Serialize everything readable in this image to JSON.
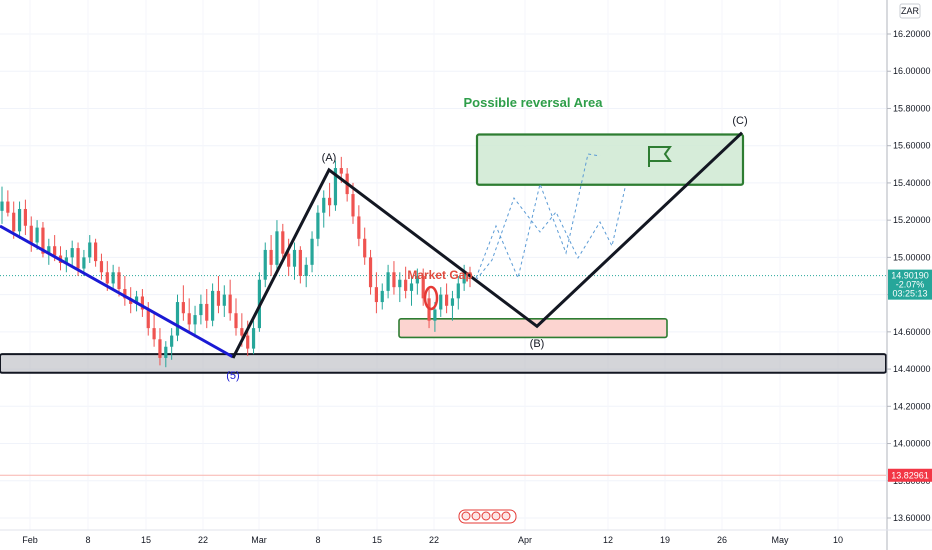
{
  "chart_data": {
    "type": "candlestick",
    "currency_badge": "ZAR",
    "y_ticks": [
      "16.20000",
      "16.00000",
      "15.80000",
      "15.60000",
      "15.40000",
      "15.20000",
      "15.00000",
      "14.80000",
      "14.60000",
      "14.40000",
      "14.20000",
      "14.00000",
      "13.80000",
      "13.60000"
    ],
    "y_range": [
      13.52,
      16.46
    ],
    "x_ticks": [
      "Feb",
      "8",
      "15",
      "22",
      "Mar",
      "8",
      "15",
      "22",
      "Apr",
      "12",
      "19",
      "26",
      "May",
      "10"
    ],
    "last_price": {
      "value": "14.90190",
      "change": "-2.07%",
      "countdown": "03:25:13",
      "color": "#26a69a"
    },
    "marked_level": {
      "value": "13.82961",
      "color": "#f23645"
    },
    "annotations": {
      "reversal_area": "Possible reversal Area",
      "market_gap": "Market Gap",
      "wave_A": "(A)",
      "wave_B": "(B)",
      "wave_C": "(C)",
      "wave_5": "(5)"
    },
    "zones": [
      {
        "name": "support",
        "y_top": 14.48,
        "y_bottom": 14.38,
        "color": "#b0b3ba"
      },
      {
        "name": "market-gap",
        "y_top": 14.67,
        "y_bottom": 14.57,
        "color": "#fcd4d0"
      },
      {
        "name": "reversal",
        "y_top": 15.66,
        "y_bottom": 15.39,
        "color": "#cfe9d2"
      }
    ],
    "wave_points": {
      "five": 14.46,
      "A": 15.47,
      "B": 14.63,
      "C": 15.67
    },
    "candles": [
      [
        15.25,
        15.38,
        15.18,
        15.3
      ],
      [
        15.3,
        15.36,
        15.22,
        15.24
      ],
      [
        15.24,
        15.3,
        15.1,
        15.14
      ],
      [
        15.14,
        15.3,
        15.1,
        15.26
      ],
      [
        15.26,
        15.31,
        15.12,
        15.17
      ],
      [
        15.17,
        15.22,
        15.03,
        15.08
      ],
      [
        15.08,
        15.2,
        15.04,
        15.16
      ],
      [
        15.16,
        15.19,
        15.0,
        15.02
      ],
      [
        15.02,
        15.1,
        14.96,
        15.06
      ],
      [
        15.06,
        15.12,
        14.98,
        15.01
      ],
      [
        15.01,
        15.06,
        14.93,
        14.97
      ],
      [
        14.97,
        15.04,
        14.92,
        15.0
      ],
      [
        15.0,
        15.09,
        14.95,
        15.05
      ],
      [
        15.05,
        15.08,
        14.9,
        14.94
      ],
      [
        14.94,
        15.04,
        14.9,
        15.0
      ],
      [
        15.0,
        15.12,
        14.97,
        15.08
      ],
      [
        15.08,
        15.1,
        14.95,
        14.98
      ],
      [
        14.98,
        15.02,
        14.88,
        14.92
      ],
      [
        14.92,
        14.98,
        14.82,
        14.86
      ],
      [
        14.86,
        14.96,
        14.82,
        14.92
      ],
      [
        14.92,
        14.95,
        14.79,
        14.83
      ],
      [
        14.83,
        14.9,
        14.74,
        14.78
      ],
      [
        14.78,
        14.84,
        14.7,
        14.75
      ],
      [
        14.75,
        14.82,
        14.71,
        14.79
      ],
      [
        14.79,
        14.83,
        14.68,
        14.72
      ],
      [
        14.72,
        14.76,
        14.58,
        14.62
      ],
      [
        14.62,
        14.7,
        14.52,
        14.56
      ],
      [
        14.56,
        14.62,
        14.42,
        14.46
      ],
      [
        14.46,
        14.55,
        14.41,
        14.52
      ],
      [
        14.52,
        14.62,
        14.45,
        14.58
      ],
      [
        14.58,
        14.8,
        14.55,
        14.76
      ],
      [
        14.76,
        14.85,
        14.66,
        14.7
      ],
      [
        14.7,
        14.78,
        14.6,
        14.64
      ],
      [
        14.64,
        14.74,
        14.57,
        14.69
      ],
      [
        14.69,
        14.8,
        14.64,
        14.75
      ],
      [
        14.75,
        14.83,
        14.62,
        14.66
      ],
      [
        14.66,
        14.86,
        14.63,
        14.82
      ],
      [
        14.82,
        14.9,
        14.7,
        14.74
      ],
      [
        14.74,
        14.85,
        14.68,
        14.8
      ],
      [
        14.8,
        14.88,
        14.66,
        14.7
      ],
      [
        14.7,
        14.78,
        14.58,
        14.62
      ],
      [
        14.62,
        14.7,
        14.52,
        14.58
      ],
      [
        14.58,
        14.66,
        14.47,
        14.51
      ],
      [
        14.51,
        14.66,
        14.48,
        14.62
      ],
      [
        14.62,
        14.92,
        14.6,
        14.88
      ],
      [
        14.88,
        15.08,
        14.84,
        15.04
      ],
      [
        15.04,
        15.12,
        14.9,
        14.96
      ],
      [
        14.96,
        15.2,
        14.92,
        15.14
      ],
      [
        15.14,
        15.18,
        14.98,
        15.02
      ],
      [
        15.02,
        15.1,
        14.9,
        14.95
      ],
      [
        14.95,
        15.08,
        14.88,
        15.04
      ],
      [
        15.04,
        15.06,
        14.86,
        14.9
      ],
      [
        14.9,
        15.0,
        14.84,
        14.96
      ],
      [
        14.96,
        15.14,
        14.92,
        15.1
      ],
      [
        15.1,
        15.28,
        15.06,
        15.24
      ],
      [
        15.24,
        15.36,
        15.16,
        15.32
      ],
      [
        15.32,
        15.4,
        15.22,
        15.28
      ],
      [
        15.28,
        15.52,
        15.25,
        15.48
      ],
      [
        15.48,
        15.54,
        15.4,
        15.45
      ],
      [
        15.45,
        15.48,
        15.3,
        15.34
      ],
      [
        15.34,
        15.4,
        15.18,
        15.22
      ],
      [
        15.22,
        15.28,
        15.06,
        15.1
      ],
      [
        15.1,
        15.16,
        14.96,
        15.0
      ],
      [
        15.0,
        15.04,
        14.8,
        14.84
      ],
      [
        14.84,
        14.92,
        14.7,
        14.76
      ],
      [
        14.76,
        14.86,
        14.72,
        14.82
      ],
      [
        14.82,
        14.96,
        14.78,
        14.92
      ],
      [
        14.92,
        14.98,
        14.8,
        14.84
      ],
      [
        14.84,
        14.92,
        14.76,
        14.88
      ],
      [
        14.88,
        14.95,
        14.78,
        14.82
      ],
      [
        14.82,
        14.9,
        14.74,
        14.86
      ],
      [
        14.86,
        14.94,
        14.8,
        14.9
      ],
      [
        14.9,
        14.94,
        14.74,
        14.78
      ],
      [
        14.78,
        14.84,
        14.62,
        14.66
      ],
      [
        14.66,
        14.76,
        14.6,
        14.72
      ],
      [
        14.72,
        14.84,
        14.68,
        14.8
      ],
      [
        14.8,
        14.86,
        14.7,
        14.74
      ],
      [
        14.74,
        14.82,
        14.66,
        14.78
      ],
      [
        14.78,
        14.9,
        14.72,
        14.86
      ],
      [
        14.86,
        14.96,
        14.82,
        14.92
      ],
      [
        14.92,
        14.95,
        14.84,
        14.9
      ]
    ]
  }
}
